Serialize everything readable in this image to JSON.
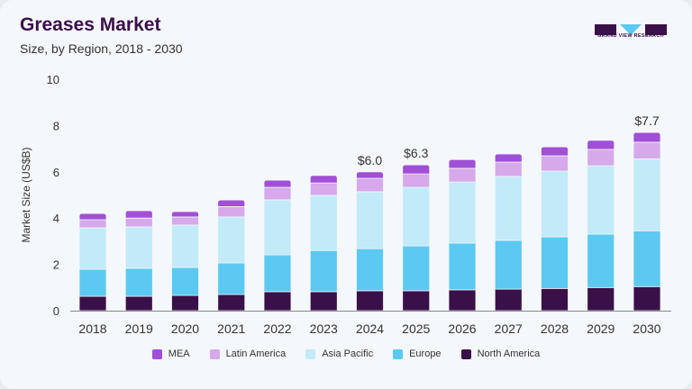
{
  "header": {
    "title": "Greases Market",
    "subtitle": "Size, by Region, 2018 - 2030",
    "logo_text": "GRAND VIEW RESEARCH"
  },
  "chart_data": {
    "type": "bar",
    "stacked": true,
    "title": "Greases Market",
    "subtitle": "Size, by Region, 2018 - 2030",
    "xlabel": "",
    "ylabel": "Market Size (US$B)",
    "ylim": [
      0,
      10
    ],
    "yticks": [
      "0",
      "2",
      "4",
      "6",
      "8",
      "10"
    ],
    "grid": false,
    "legend": "bottom",
    "categories": [
      "2018",
      "2019",
      "2020",
      "2021",
      "2022",
      "2023",
      "2024",
      "2025",
      "2026",
      "2027",
      "2028",
      "2029",
      "2030"
    ],
    "series": [
      {
        "name": "North America",
        "color": "#3a1048",
        "values": [
          0.62,
          0.62,
          0.66,
          0.7,
          0.82,
          0.82,
          0.86,
          0.86,
          0.9,
          0.93,
          0.96,
          1.0,
          1.04
        ]
      },
      {
        "name": "Europe",
        "color": "#5bc9f1",
        "values": [
          1.17,
          1.21,
          1.21,
          1.36,
          1.59,
          1.78,
          1.82,
          1.94,
          2.02,
          2.11,
          2.23,
          2.31,
          2.41
        ]
      },
      {
        "name": "Asia Pacific",
        "color": "#c2eaf9",
        "values": [
          1.79,
          1.79,
          1.83,
          1.99,
          2.38,
          2.38,
          2.46,
          2.53,
          2.64,
          2.76,
          2.84,
          2.95,
          3.11
        ]
      },
      {
        "name": "Latin America",
        "color": "#d5a9ea",
        "values": [
          0.35,
          0.38,
          0.35,
          0.45,
          0.54,
          0.54,
          0.58,
          0.58,
          0.59,
          0.62,
          0.66,
          0.71,
          0.72
        ]
      },
      {
        "name": "MEA",
        "color": "#a04fd6",
        "values": [
          0.27,
          0.32,
          0.23,
          0.28,
          0.31,
          0.32,
          0.28,
          0.39,
          0.38,
          0.35,
          0.39,
          0.39,
          0.42
        ]
      }
    ],
    "data_labels": [
      {
        "category": "2024",
        "text": "$6.0"
      },
      {
        "category": "2025",
        "text": "$6.3"
      },
      {
        "category": "2030",
        "text": "$7.7"
      }
    ],
    "legend_order": [
      "MEA",
      "Latin America",
      "Asia Pacific",
      "Europe",
      "North America"
    ]
  }
}
